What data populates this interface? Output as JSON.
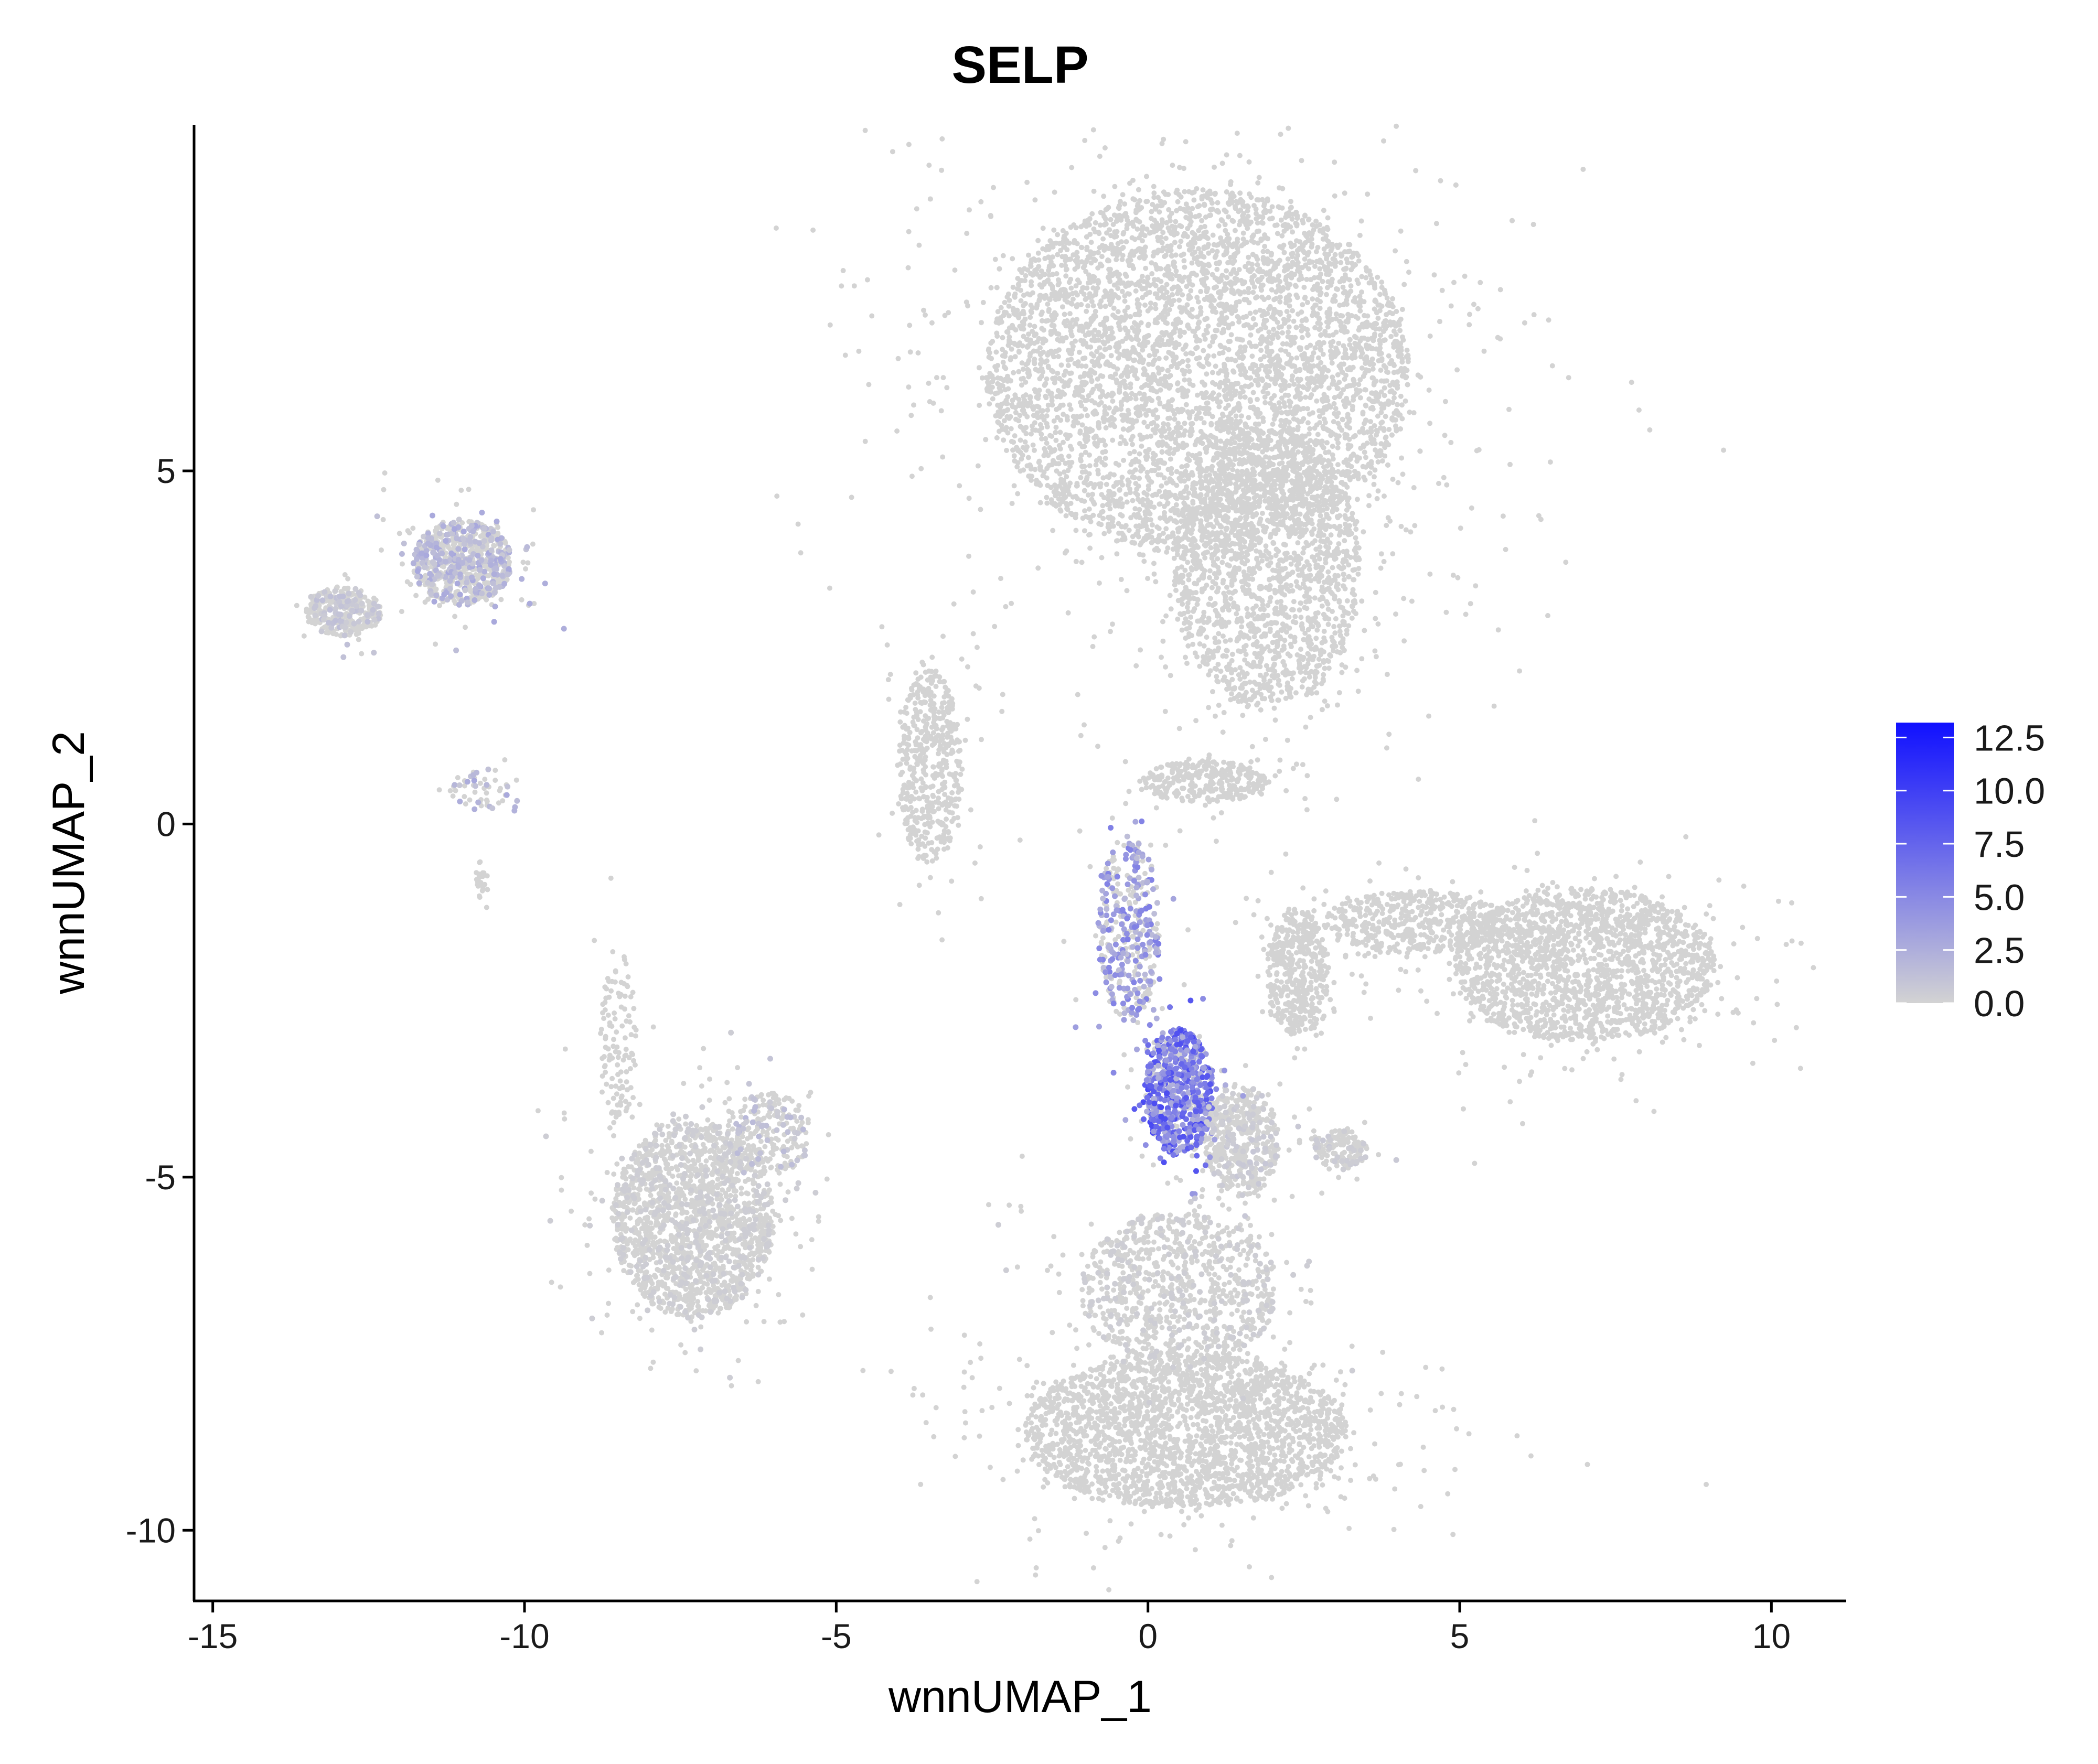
{
  "chart_data": {
    "type": "scatter",
    "title": "SELP",
    "xlabel": "wnnUMAP_1",
    "ylabel": "wnnUMAP_2",
    "xlim": [
      -15.3,
      11.2
    ],
    "ylim": [
      -11.0,
      9.9
    ],
    "xticks": [
      -15,
      -10,
      -5,
      0,
      5,
      10
    ],
    "xtick_labels": [
      "-15",
      "-10",
      "-5",
      "0",
      "5",
      "10"
    ],
    "yticks": [
      -10,
      -5,
      0,
      5
    ],
    "ytick_labels": [
      "-10",
      "-5",
      "0",
      "5"
    ],
    "grid": false,
    "color_scale": {
      "low_color": "#d3d3d3",
      "high_color": "#1010ff",
      "min": 0,
      "max": 13.2,
      "ticks": [
        0.0,
        2.5,
        5.0,
        7.5,
        10.0,
        12.5
      ],
      "tick_labels": [
        "0.0",
        "2.5",
        "5.0",
        "7.5",
        "10.0",
        "12.5"
      ]
    },
    "legend_position": "right",
    "clusters": [
      {
        "name": "",
        "cx": 0.8,
        "cy": 6.4,
        "rx": 3.4,
        "ry": 2.6,
        "n": 5200,
        "expr": 0
      },
      {
        "name": "",
        "cx": 1.9,
        "cy": 3.6,
        "rx": 1.5,
        "ry": 2.0,
        "n": 1800,
        "expr": 0
      },
      {
        "name": "",
        "cx": 0.6,
        "cy": -8.6,
        "rx": 2.6,
        "ry": 1.1,
        "n": 2400,
        "expr": 0
      },
      {
        "name": "",
        "cx": 0.5,
        "cy": -6.6,
        "rx": 1.6,
        "ry": 1.1,
        "n": 900,
        "expr": 0.3
      },
      {
        "name": "",
        "cx": 7.0,
        "cy": -2.0,
        "rx": 2.1,
        "ry": 1.1,
        "n": 1900,
        "expr": 0
      },
      {
        "name": "",
        "cx": 4.3,
        "cy": -1.4,
        "rx": 1.5,
        "ry": 0.45,
        "n": 500,
        "expr": 0
      },
      {
        "name": "",
        "cx": -7.3,
        "cy": -5.6,
        "rx": 1.3,
        "ry": 1.4,
        "n": 1800,
        "expr": 0.3
      },
      {
        "name": "",
        "cx": -6.1,
        "cy": -4.4,
        "rx": 0.7,
        "ry": 0.6,
        "n": 250,
        "expr": 1.2
      },
      {
        "name": "",
        "cx": -11.0,
        "cy": 3.7,
        "rx": 0.8,
        "ry": 0.6,
        "n": 800,
        "expr": 2.0
      },
      {
        "name": "",
        "cx": -12.9,
        "cy": 3.0,
        "rx": 0.6,
        "ry": 0.35,
        "n": 350,
        "expr": 1.0
      },
      {
        "name": "",
        "cx": -3.5,
        "cy": 0.8,
        "rx": 0.5,
        "ry": 1.4,
        "n": 500,
        "expr": 0
      },
      {
        "name": "",
        "cx": 2.4,
        "cy": -2.1,
        "rx": 0.5,
        "ry": 0.9,
        "n": 450,
        "expr": 0
      },
      {
        "name": "",
        "cx": 0.5,
        "cy": -3.8,
        "rx": 0.55,
        "ry": 0.9,
        "n": 700,
        "expr": 6.5
      },
      {
        "name": "",
        "cx": -0.3,
        "cy": -1.5,
        "rx": 0.5,
        "ry": 1.3,
        "n": 400,
        "expr": 4.0
      },
      {
        "name": "",
        "cx": 1.5,
        "cy": -4.5,
        "rx": 0.6,
        "ry": 0.8,
        "n": 500,
        "expr": 0.6
      },
      {
        "name": "",
        "cx": 0.9,
        "cy": 0.6,
        "rx": 1.0,
        "ry": 0.3,
        "n": 300,
        "expr": 0
      },
      {
        "name": "",
        "cx": 3.1,
        "cy": -4.6,
        "rx": 0.45,
        "ry": 0.3,
        "n": 150,
        "expr": 0.5
      },
      {
        "name": "",
        "cx": -8.5,
        "cy": -3.0,
        "rx": 0.3,
        "ry": 1.2,
        "n": 120,
        "expr": 0
      },
      {
        "name": "",
        "cx": -10.7,
        "cy": 0.5,
        "rx": 0.5,
        "ry": 0.3,
        "n": 60,
        "expr": 2.0
      },
      {
        "name": "",
        "cx": -10.7,
        "cy": -0.8,
        "rx": 0.12,
        "ry": 0.3,
        "n": 25,
        "expr": 0
      }
    ]
  }
}
